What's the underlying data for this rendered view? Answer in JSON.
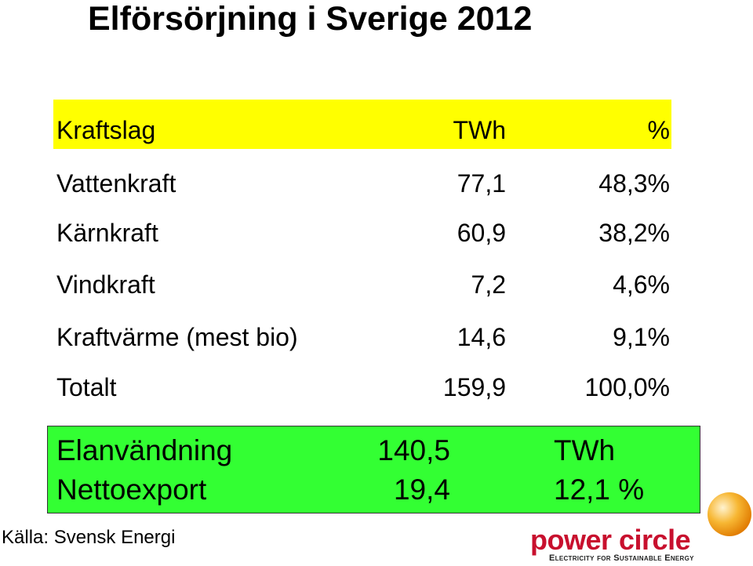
{
  "title": "Elförsörjning i Sverige 2012",
  "table": {
    "header": [
      "Kraftslag",
      "TWh",
      "%"
    ],
    "rows": [
      [
        "Vattenkraft",
        "77,1",
        "48,3%"
      ],
      [
        "Kärnkraft",
        "60,9",
        "38,2%"
      ],
      [
        "Vindkraft",
        "7,2",
        "4,6%"
      ],
      [
        "Kraftvärme (mest bio)",
        "14,6",
        "9,1%"
      ],
      [
        "Totalt",
        "159,9",
        "100,0%"
      ]
    ]
  },
  "summary": {
    "rows": [
      [
        "Elanvändning",
        "140,5",
        "TWh"
      ],
      [
        "Nettoexport",
        "19,4",
        "12,1 %"
      ]
    ]
  },
  "source": "Källa: Svensk Energi",
  "logo": {
    "name": "power circle",
    "tagline": "Electricity for Sustainable Energy"
  }
}
